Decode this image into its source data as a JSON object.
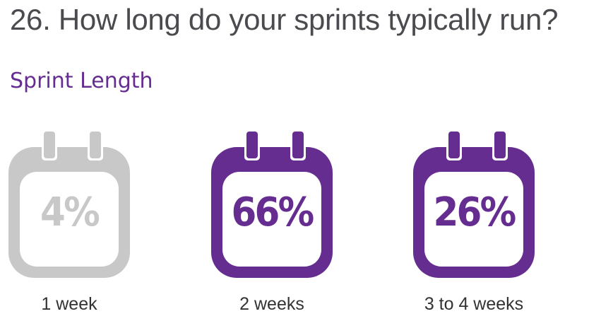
{
  "question": "26. How long do your sprints typically run?",
  "chart_data": {
    "type": "table",
    "title": "Sprint Length",
    "categories": [
      "1 week",
      "2 weeks",
      "3 to 4 weeks"
    ],
    "values": [
      4,
      66,
      26
    ],
    "value_labels": [
      "4%",
      "66%",
      "26%"
    ],
    "unit": "%"
  },
  "colors": {
    "title": "#4a4a4f",
    "accent": "#662d91",
    "muted": "#c8c8c8",
    "label": "#333333"
  },
  "calendars": [
    {
      "label": "1 week",
      "value": "4%",
      "color": "#c8c8c8",
      "icon": "calendar-icon"
    },
    {
      "label": "2 weeks",
      "value": "66%",
      "color": "#662d91",
      "icon": "calendar-icon"
    },
    {
      "label": "3 to 4 weeks",
      "value": "26%",
      "color": "#662d91",
      "icon": "calendar-icon"
    }
  ]
}
